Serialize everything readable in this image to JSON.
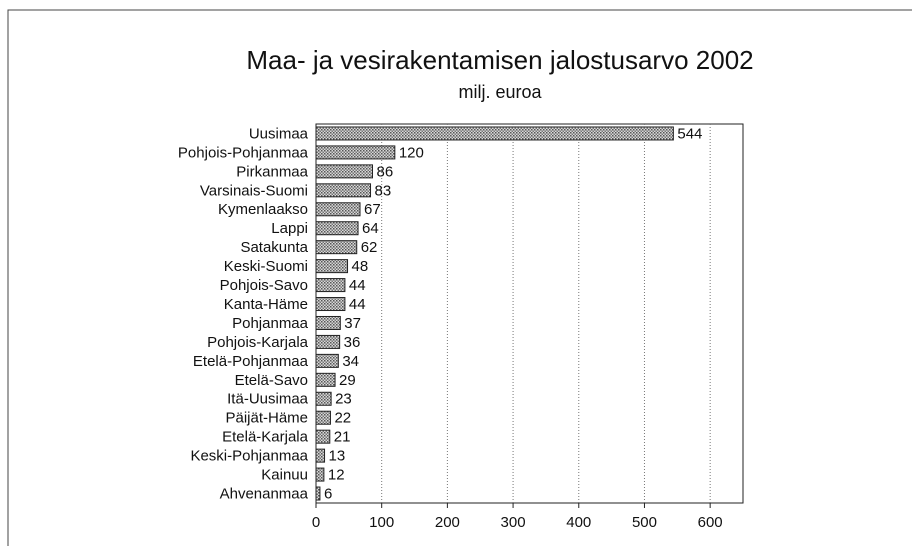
{
  "chart_data": {
    "type": "bar",
    "orientation": "horizontal",
    "title": "Maa- ja vesirakentamisen jalostusarvo 2002",
    "subtitle": "milj. euroa",
    "categories": [
      "Uusimaa",
      "Pohjois-Pohjanmaa",
      "Pirkanmaa",
      "Varsinais-Suomi",
      "Kymenlaakso",
      "Lappi",
      "Satakunta",
      "Keski-Suomi",
      "Pohjois-Savo",
      "Kanta-Häme",
      "Pohjanmaa",
      "Pohjois-Karjala",
      "Etelä-Pohjanmaa",
      "Etelä-Savo",
      "Itä-Uusimaa",
      "Päijät-Häme",
      "Etelä-Karjala",
      "Keski-Pohjanmaa",
      "Kainuu",
      "Ahvenanmaa"
    ],
    "values": [
      544,
      120,
      86,
      83,
      67,
      64,
      62,
      48,
      44,
      44,
      37,
      36,
      34,
      29,
      23,
      22,
      21,
      13,
      12,
      6
    ],
    "color": "#9a9a9a",
    "xlim": [
      0,
      650
    ],
    "xticks": [
      0,
      100,
      200,
      300,
      400,
      500,
      600
    ],
    "grid": true
  }
}
